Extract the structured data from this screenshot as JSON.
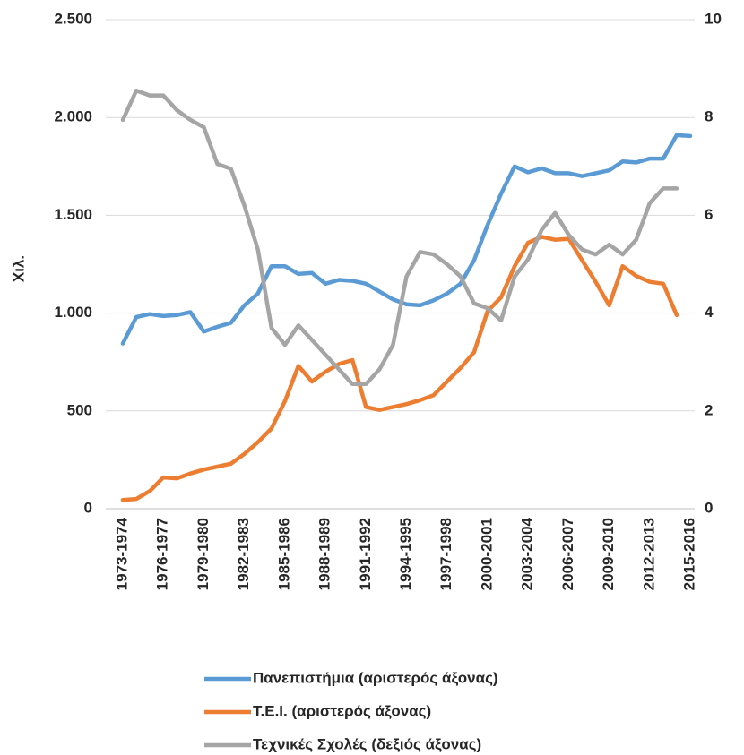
{
  "chart_data": {
    "type": "line",
    "y_label": "Χιλ.",
    "categories": [
      "1973-1974",
      null,
      null,
      "1976-1977",
      null,
      null,
      "1979-1980",
      null,
      null,
      "1982-1983",
      null,
      null,
      "1985-1986",
      null,
      null,
      "1988-1989",
      null,
      null,
      "1991-1992",
      null,
      null,
      "1994-1995",
      null,
      null,
      "1997-1998",
      null,
      null,
      "2000-2001",
      null,
      null,
      "2003-2004",
      null,
      null,
      "2006-2007",
      null,
      null,
      "2009-2010",
      null,
      null,
      "2012-2013",
      null,
      null,
      "2015-2016"
    ],
    "ylim": [
      0,
      2500
    ],
    "yticks": [
      0,
      500,
      {
        "value": 1000,
        "label": "1.000"
      },
      {
        "value": 1500,
        "label": "1.500"
      },
      {
        "value": 2000,
        "label": "2.000"
      },
      {
        "value": 2500,
        "label": "2.500"
      }
    ],
    "y2lim": [
      0,
      10
    ],
    "y2ticks": [
      0,
      2,
      4,
      6,
      8,
      10
    ],
    "grid": true,
    "legend": "bottom",
    "series": [
      {
        "name": "Πανεπιστήμια (αριστερός άξονας)",
        "color": "#5b9bd5",
        "values": [
          845,
          980,
          995,
          985,
          990,
          1005,
          905,
          930,
          950,
          1040,
          1100,
          1240,
          1240,
          1200,
          1205,
          1150,
          1170,
          1165,
          1150,
          1110,
          1070,
          1045,
          1040,
          1065,
          1100,
          1150,
          1270,
          1450,
          1610,
          1750,
          1720,
          1740,
          1715,
          1715,
          1700,
          1715,
          1730,
          1775,
          1770,
          1790,
          1790,
          1910,
          1905
        ]
      },
      {
        "name": "Τ.Ε.Ι. (αριστερός άξονας)",
        "color": "#ed7d31",
        "values": [
          45,
          50,
          90,
          160,
          155,
          180,
          200,
          215,
          230,
          280,
          340,
          410,
          550,
          730,
          650,
          700,
          740,
          760,
          520,
          505,
          520,
          535,
          555,
          580,
          650,
          720,
          800,
          1010,
          1080,
          1240,
          1360,
          1390,
          1375,
          1380,
          1270,
          1160,
          1040,
          1240,
          1190,
          1160,
          1150,
          990,
          null
        ]
      },
      {
        "name": "Τεχνικές Σχολές (δεξιός άξονας)",
        "color": "#a5a5a5",
        "axis": "y2",
        "values": [
          7.95,
          8.55,
          8.45,
          8.45,
          8.15,
          7.95,
          7.8,
          7.05,
          6.95,
          6.2,
          5.3,
          3.7,
          3.35,
          3.75,
          3.45,
          3.15,
          2.85,
          2.55,
          2.55,
          2.85,
          3.35,
          4.75,
          5.25,
          5.2,
          5.0,
          4.75,
          4.2,
          4.1,
          3.85,
          4.75,
          5.1,
          5.7,
          6.05,
          5.6,
          5.3,
          5.2,
          5.4,
          5.2,
          5.5,
          6.25,
          6.55,
          6.55,
          null
        ]
      }
    ]
  }
}
